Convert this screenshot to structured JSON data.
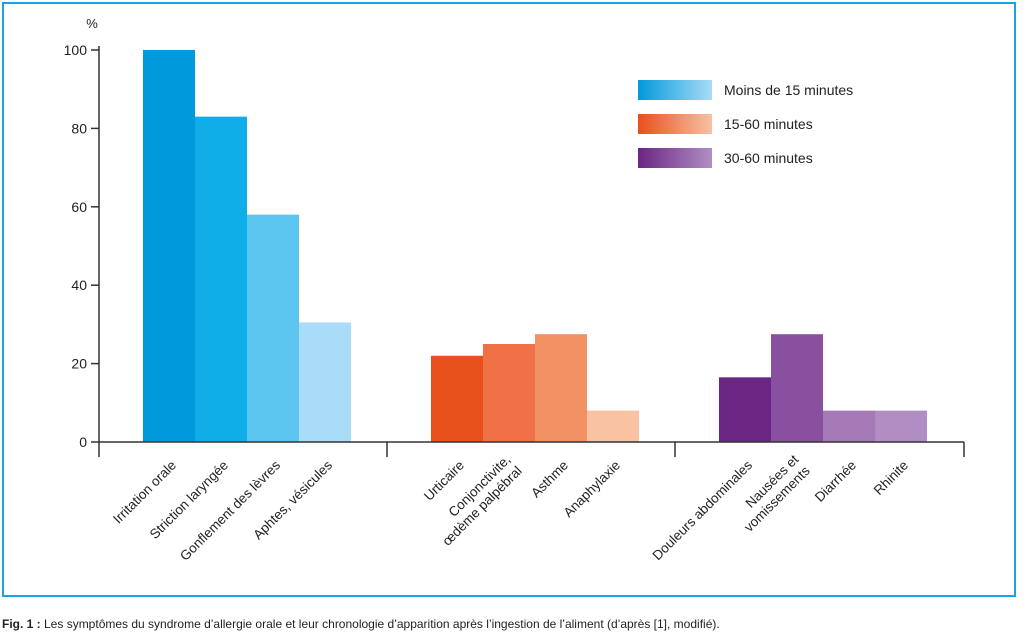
{
  "chart_data": {
    "type": "bar",
    "ylabel": "%",
    "ylim": [
      0,
      100
    ],
    "yticks": [
      0,
      20,
      40,
      60,
      80,
      100
    ],
    "grid": false,
    "legend_position": "top-right",
    "groups": [
      {
        "name": "Moins de 15 minutes",
        "colors": [
          "#0099dc",
          "#10aee8",
          "#5cc5f0",
          "#a8dcf7"
        ],
        "bars": [
          {
            "label": [
              "Irritation orale"
            ],
            "value": 100
          },
          {
            "label": [
              "Striction laryngée"
            ],
            "value": 83
          },
          {
            "label": [
              "Gonflement des lèvres"
            ],
            "value": 58
          },
          {
            "label": [
              "Aphtes, vésicules"
            ],
            "value": 30.5
          }
        ]
      },
      {
        "name": "15-60 minutes",
        "colors": [
          "#e8501c",
          "#ef7145",
          "#f29164",
          "#f8c2a3"
        ],
        "bars": [
          {
            "label": [
              "Urticaire"
            ],
            "value": 22
          },
          {
            "label": [
              "Conjonctivite,",
              "œdème palpébral"
            ],
            "value": 25
          },
          {
            "label": [
              "Asthme"
            ],
            "value": 27.5
          },
          {
            "label": [
              "Anaphylaxie"
            ],
            "value": 8
          }
        ]
      },
      {
        "name": "30-60 minutes",
        "colors": [
          "#6b2582",
          "#88509e",
          "#a479b6",
          "#b08ec4"
        ],
        "bars": [
          {
            "label": [
              "Douleurs abdominales"
            ],
            "value": 16.5
          },
          {
            "label": [
              "Nausées et",
              "vomissements"
            ],
            "value": 27.5
          },
          {
            "label": [
              "Diarrhée"
            ],
            "value": 8
          },
          {
            "label": [
              "Rhinite"
            ],
            "value": 8
          }
        ]
      }
    ],
    "legend": [
      {
        "label": "Moins de 15 minutes",
        "from": "#0099dc",
        "to": "#a8dcf7"
      },
      {
        "label": "15-60 minutes",
        "from": "#e8501c",
        "to": "#f8c2a3"
      },
      {
        "label": "30-60 minutes",
        "from": "#6b2582",
        "to": "#b08ec4"
      }
    ]
  },
  "caption": {
    "prefix": "Fig. 1 :",
    "text": " Les symptômes du syndrome d’allergie orale et leur chronologie d’apparition après l’ingestion de l’aliment (d’après [1], modifié)."
  }
}
